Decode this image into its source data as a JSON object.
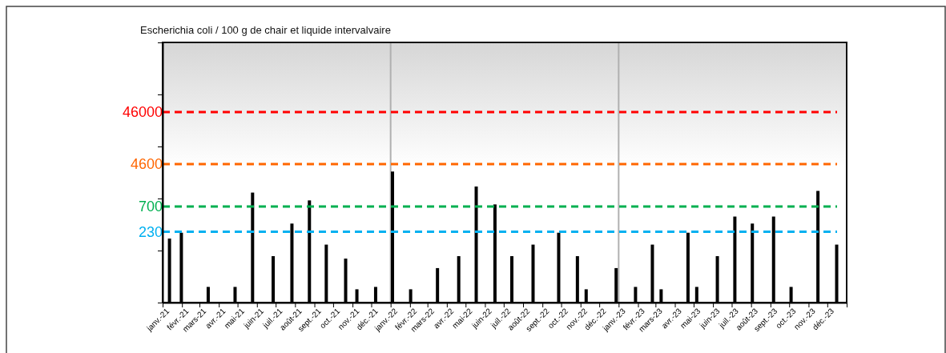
{
  "chart_data": {
    "type": "bar",
    "title": "Escherichia coli / 100 g de chair et liquide intervalvaire",
    "x": [
      "2021-01-12",
      "2021-01-31",
      "2021-03-15",
      "2021-04-27",
      "2021-05-25",
      "2021-06-27",
      "2021-07-27",
      "2021-08-24",
      "2021-09-20",
      "2021-10-21",
      "2021-11-08",
      "2021-12-08",
      "2022-01-04",
      "2022-02-02",
      "2022-03-17",
      "2022-04-20",
      "2022-05-18",
      "2022-06-17",
      "2022-07-14",
      "2022-08-17",
      "2022-09-27",
      "2022-10-27",
      "2022-11-10",
      "2022-12-28",
      "2023-01-28",
      "2023-02-24",
      "2023-03-10",
      "2023-04-22",
      "2023-05-06",
      "2023-06-08",
      "2023-07-06",
      "2023-08-03",
      "2023-09-06",
      "2023-10-04",
      "2023-11-16",
      "2023-12-16"
    ],
    "values": [
      170,
      220,
      20,
      20,
      1300,
      78,
      330,
      920,
      130,
      70,
      18,
      20,
      3300,
      18,
      46,
      78,
      1700,
      770,
      78,
      130,
      220,
      78,
      18,
      46,
      20,
      130,
      18,
      220,
      20,
      78,
      450,
      330,
      450,
      20,
      1400,
      130
    ],
    "color": "#000000",
    "log": "y",
    "ylim": [
      10,
      1000000
    ],
    "yticks": [
      {
        "value": 10,
        "label": null
      },
      {
        "value": 100,
        "label": null
      },
      {
        "value": 1000,
        "label": null
      },
      {
        "value": 10000,
        "label": null
      },
      {
        "value": 100000,
        "label": null
      },
      {
        "value": 1000000,
        "label": null
      }
    ],
    "xlim": [
      "2021-01-01",
      "2024-01-01"
    ],
    "xticks": [
      {
        "value": "2021-01-01",
        "label": "janv.-21"
      },
      {
        "value": "2021-02-01",
        "label": "févr.-21"
      },
      {
        "value": "2021-03-01",
        "label": "mars-21"
      },
      {
        "value": "2021-04-01",
        "label": "avr.-21"
      },
      {
        "value": "2021-05-01",
        "label": "mai-21"
      },
      {
        "value": "2021-06-01",
        "label": "juin-21"
      },
      {
        "value": "2021-07-01",
        "label": "juil.-21"
      },
      {
        "value": "2021-08-01",
        "label": "août-21"
      },
      {
        "value": "2021-09-01",
        "label": "sept.-21"
      },
      {
        "value": "2021-10-01",
        "label": "oct.-21"
      },
      {
        "value": "2021-11-01",
        "label": "nov.-21"
      },
      {
        "value": "2021-12-01",
        "label": "déc.-21"
      },
      {
        "value": "2022-01-01",
        "label": "janv.-22"
      },
      {
        "value": "2022-02-01",
        "label": "févr.-22"
      },
      {
        "value": "2022-03-01",
        "label": "mars-22"
      },
      {
        "value": "2022-04-01",
        "label": "avr.-22"
      },
      {
        "value": "2022-05-01",
        "label": "mai-22"
      },
      {
        "value": "2022-06-01",
        "label": "juin-22"
      },
      {
        "value": "2022-07-01",
        "label": "juil.-22"
      },
      {
        "value": "2022-08-01",
        "label": "août-22"
      },
      {
        "value": "2022-09-01",
        "label": "sept.-22"
      },
      {
        "value": "2022-10-01",
        "label": "oct.-22"
      },
      {
        "value": "2022-11-01",
        "label": "nov.-22"
      },
      {
        "value": "2022-12-01",
        "label": "déc.-22"
      },
      {
        "value": "2023-01-01",
        "label": "janv.-23"
      },
      {
        "value": "2023-02-01",
        "label": "févr.-23"
      },
      {
        "value": "2023-03-01",
        "label": "mars-23"
      },
      {
        "value": "2023-04-01",
        "label": "avr.-23"
      },
      {
        "value": "2023-05-01",
        "label": "mai-23"
      },
      {
        "value": "2023-06-01",
        "label": "juin-23"
      },
      {
        "value": "2023-07-01",
        "label": "juil.-23"
      },
      {
        "value": "2023-08-01",
        "label": "août-23"
      },
      {
        "value": "2023-09-01",
        "label": "sept.-23"
      },
      {
        "value": "2023-10-01",
        "label": "oct.-23"
      },
      {
        "value": "2023-11-01",
        "label": "nov.-23"
      },
      {
        "value": "2023-12-01",
        "label": "déc.-23"
      },
      {
        "value": "2024-01-01",
        "label": null
      }
    ],
    "ref_lines": [
      {
        "axis": "y",
        "value": 46000,
        "label": "46000",
        "color": "#ff0000",
        "line_style": "dashed"
      },
      {
        "axis": "y",
        "value": 4600,
        "label": "4600",
        "color": "#ff6600",
        "line_style": "dashed"
      },
      {
        "axis": "y",
        "value": 700,
        "label": "700",
        "color": "#00b050",
        "line_style": "dashed"
      },
      {
        "axis": "y",
        "value": 230,
        "label": "230",
        "color": "#00b0f0",
        "line_style": "dashed"
      },
      {
        "axis": "x",
        "value": "2022-01-01",
        "label": null,
        "color": "#b0b0b0",
        "line_style": "solid"
      },
      {
        "axis": "x",
        "value": "2023-01-01",
        "label": null,
        "color": "#b0b0b0",
        "line_style": "solid"
      }
    ],
    "grid": false
  }
}
